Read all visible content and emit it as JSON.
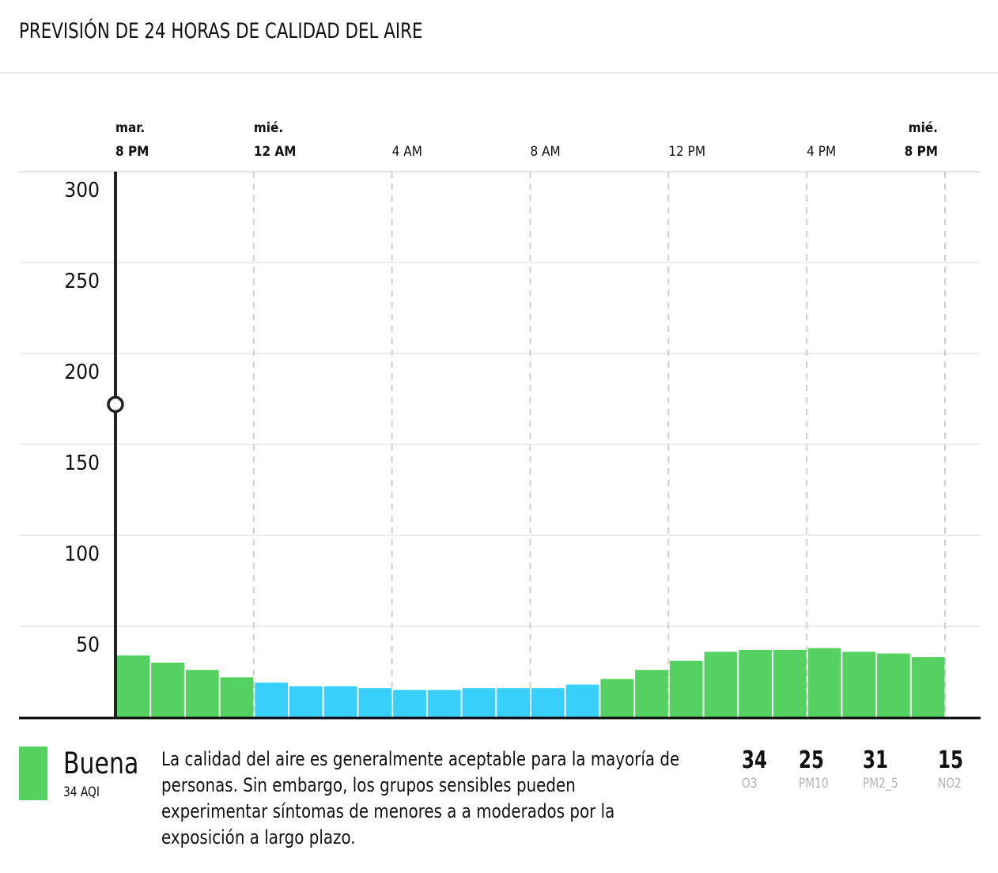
{
  "header": {
    "title": "PREVISIÓN DE 24 HORAS DE CALIDAD DEL AIRE"
  },
  "chart_data": {
    "type": "bar",
    "title": "PREVISIÓN DE 24 HORAS DE CALIDAD DEL AIRE",
    "ylim": [
      0,
      300
    ],
    "yticks": [
      "50",
      "100",
      "150",
      "200",
      "250",
      "300"
    ],
    "xtick_labels": [
      {
        "day": "mar.",
        "time": "8 PM",
        "hour": 0,
        "bold": true
      },
      {
        "day": "mié.",
        "time": "12 AM",
        "hour": 4,
        "bold": true
      },
      {
        "day": "",
        "time": "4 AM",
        "hour": 8,
        "bold": false
      },
      {
        "day": "",
        "time": "8 AM",
        "hour": 12,
        "bold": false
      },
      {
        "day": "",
        "time": "12 PM",
        "hour": 16,
        "bold": false
      },
      {
        "day": "",
        "time": "4 PM",
        "hour": 20,
        "bold": false
      },
      {
        "day": "mié.",
        "time": "8 PM",
        "hour": 24,
        "bold": true
      }
    ],
    "values": [
      34,
      30,
      26,
      22,
      19,
      17,
      17,
      16,
      15,
      15,
      16,
      16,
      16,
      18,
      21,
      26,
      31,
      36,
      37,
      37,
      38,
      36,
      35,
      33
    ],
    "colors": [
      "#55d162",
      "#55d162",
      "#55d162",
      "#55d162",
      "#38d0fb",
      "#38d0fb",
      "#38d0fb",
      "#38d0fb",
      "#38d0fb",
      "#38d0fb",
      "#38d0fb",
      "#38d0fb",
      "#38d0fb",
      "#38d0fb",
      "#55d162",
      "#55d162",
      "#55d162",
      "#55d162",
      "#55d162",
      "#55d162",
      "#55d162",
      "#55d162",
      "#55d162",
      "#55d162"
    ],
    "cursor": {
      "hour": 0,
      "value": 172
    }
  },
  "summary": {
    "color": "#55d162",
    "category": "Buena",
    "aqi": "34 AQI",
    "description": "La calidad del aire es generalmente aceptable para la mayoría de personas. Sin embargo, los grupos sensibles pueden experimentar síntomas de menores a a moderados por la exposición a largo plazo.",
    "pollutants": [
      {
        "value": "34",
        "name": "O3"
      },
      {
        "value": "25",
        "name": "PM10"
      },
      {
        "value": "31",
        "name": "PM2_5"
      },
      {
        "value": "15",
        "name": "NO2"
      }
    ]
  }
}
